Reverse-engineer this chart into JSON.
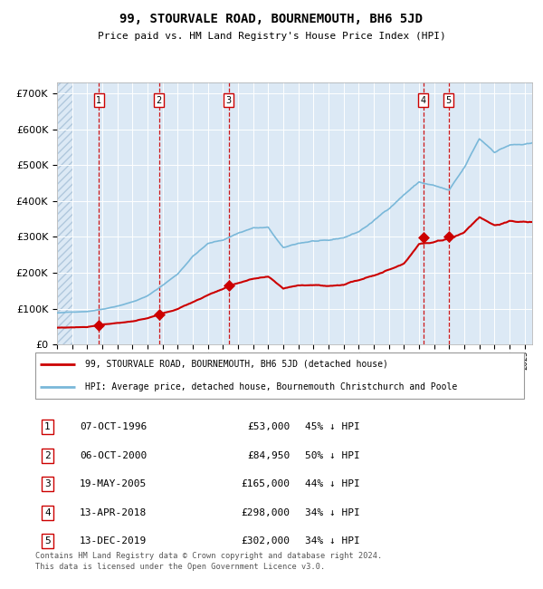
{
  "title": "99, STOURVALE ROAD, BOURNEMOUTH, BH6 5JD",
  "subtitle": "Price paid vs. HM Land Registry's House Price Index (HPI)",
  "legend_red": "99, STOURVALE ROAD, BOURNEMOUTH, BH6 5JD (detached house)",
  "legend_blue": "HPI: Average price, detached house, Bournemouth Christchurch and Poole",
  "footer": "Contains HM Land Registry data © Crown copyright and database right 2024.\nThis data is licensed under the Open Government Licence v3.0.",
  "sales": [
    {
      "label": "1",
      "date": "07-OCT-1996",
      "price": 53000,
      "pct": "45% ↓ HPI",
      "date_num": 1996.77
    },
    {
      "label": "2",
      "date": "06-OCT-2000",
      "price": 84950,
      "pct": "50% ↓ HPI",
      "date_num": 2000.77
    },
    {
      "label": "3",
      "date": "19-MAY-2005",
      "price": 165000,
      "pct": "44% ↓ HPI",
      "date_num": 2005.38
    },
    {
      "label": "4",
      "date": "13-APR-2018",
      "price": 298000,
      "pct": "34% ↓ HPI",
      "date_num": 2018.28
    },
    {
      "label": "5",
      "date": "13-DEC-2019",
      "price": 302000,
      "pct": "34% ↓ HPI",
      "date_num": 2019.95
    }
  ],
  "hpi_color": "#7ab8d9",
  "sale_color": "#cc0000",
  "vline_color": "#cc0000",
  "bg_color": "#dce9f5",
  "ylim": [
    0,
    730000
  ],
  "xlim_start": 1994.0,
  "xlim_end": 2025.5,
  "yticks": [
    0,
    100000,
    200000,
    300000,
    400000,
    500000,
    600000,
    700000
  ],
  "hpi_key_years": [
    1994,
    1995,
    1996,
    1997,
    1998,
    1999,
    2000,
    2001,
    2002,
    2003,
    2004,
    2005,
    2006,
    2007,
    2008,
    2009,
    2010,
    2011,
    2012,
    2013,
    2014,
    2015,
    2016,
    2017,
    2018,
    2019,
    2020,
    2021,
    2022,
    2023,
    2024,
    2025
  ],
  "hpi_key_vals": [
    88000,
    90000,
    93000,
    100000,
    110000,
    122000,
    138000,
    168000,
    200000,
    250000,
    285000,
    295000,
    315000,
    330000,
    330000,
    272000,
    285000,
    292000,
    290000,
    298000,
    315000,
    345000,
    380000,
    420000,
    455000,
    445000,
    430000,
    490000,
    570000,
    535000,
    555000,
    555000
  ],
  "red_key_years": [
    1994,
    1995,
    1996,
    1997,
    1998,
    1999,
    2000,
    2001,
    2002,
    2003,
    2004,
    2005,
    2006,
    2007,
    2008,
    2009,
    2010,
    2011,
    2012,
    2013,
    2014,
    2015,
    2016,
    2017,
    2018,
    2019,
    2020,
    2021,
    2022,
    2023,
    2024,
    2025
  ],
  "red_key_vals": [
    47000,
    48000,
    50000,
    58000,
    63000,
    68000,
    75000,
    88000,
    100000,
    120000,
    140000,
    158000,
    175000,
    185000,
    188000,
    155000,
    165000,
    168000,
    165000,
    170000,
    183000,
    200000,
    215000,
    235000,
    292000,
    295000,
    305000,
    325000,
    368000,
    348000,
    358000,
    355000
  ]
}
